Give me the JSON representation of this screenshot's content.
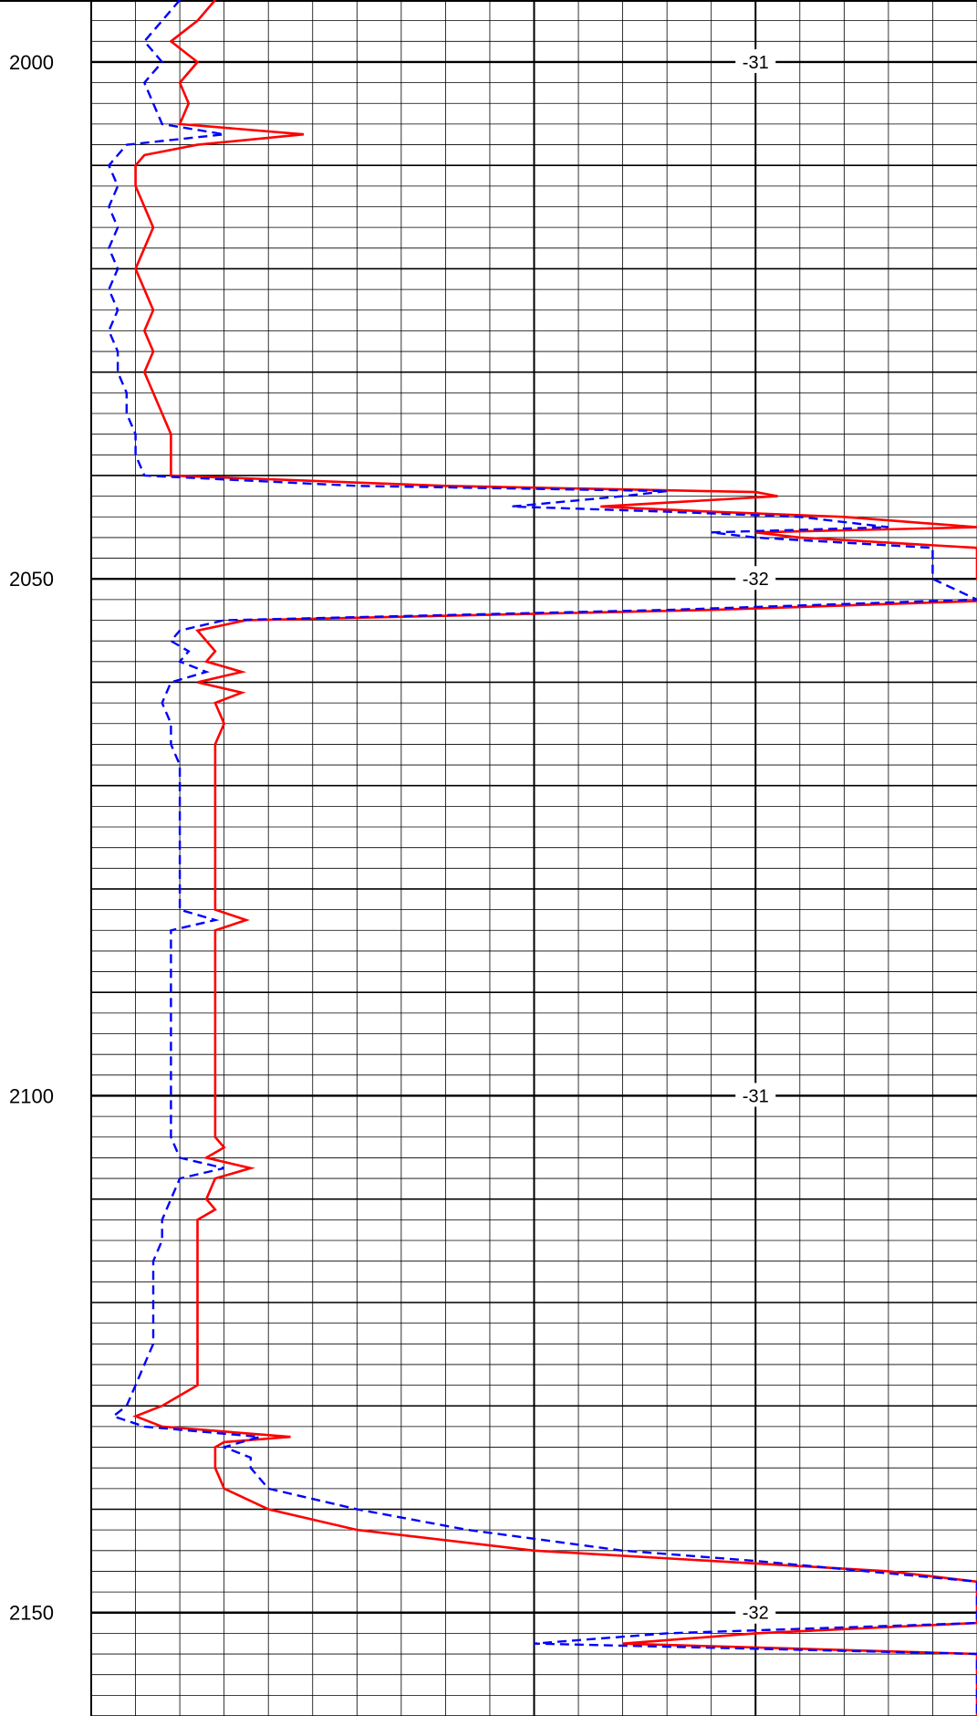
{
  "chart_data": {
    "type": "line",
    "depth_axis": {
      "min": 1994,
      "max": 2160,
      "major_step": 50,
      "grid_step": 2,
      "bold_step": 10,
      "labels": [
        "2000",
        "2050",
        "2100",
        "2150"
      ]
    },
    "track": {
      "xmin": 0,
      "xmax": 200,
      "vertical_lines": [
        0,
        10,
        20,
        30,
        40,
        50,
        60,
        70,
        80,
        90,
        100,
        110,
        120,
        130,
        140,
        150,
        160,
        170,
        180,
        190,
        200
      ],
      "bold_vertical": [
        0,
        100,
        150
      ]
    },
    "annotations": [
      {
        "depth": 2000,
        "text": "-31"
      },
      {
        "depth": 2050,
        "text": "-32"
      },
      {
        "depth": 2100,
        "text": "-31"
      },
      {
        "depth": 2150,
        "text": "-32"
      }
    ],
    "series": [
      {
        "style": "solid",
        "color": "#ff0000",
        "points": [
          [
            1994,
            28
          ],
          [
            1996,
            24
          ],
          [
            1998,
            18
          ],
          [
            2000,
            24
          ],
          [
            2002,
            20
          ],
          [
            2004,
            22
          ],
          [
            2006,
            20
          ],
          [
            2007,
            48
          ],
          [
            2008,
            24
          ],
          [
            2009,
            12
          ],
          [
            2010,
            10
          ],
          [
            2012,
            10
          ],
          [
            2014,
            12
          ],
          [
            2016,
            14
          ],
          [
            2018,
            12
          ],
          [
            2020,
            10
          ],
          [
            2022,
            12
          ],
          [
            2024,
            14
          ],
          [
            2026,
            12
          ],
          [
            2028,
            14
          ],
          [
            2030,
            12
          ],
          [
            2032,
            14
          ],
          [
            2034,
            16
          ],
          [
            2036,
            18
          ],
          [
            2038,
            18
          ],
          [
            2040,
            18
          ],
          [
            2041,
            80
          ],
          [
            2041.6,
            150
          ],
          [
            2042,
            155
          ],
          [
            2043,
            115
          ],
          [
            2043.5,
            140
          ],
          [
            2044,
            170
          ],
          [
            2045,
            200
          ],
          [
            2045.5,
            150
          ],
          [
            2046,
            160
          ],
          [
            2047,
            200
          ],
          [
            2050,
            200
          ],
          [
            2052,
            210
          ],
          [
            2053,
            140
          ],
          [
            2054,
            35
          ],
          [
            2055,
            24
          ],
          [
            2057,
            28
          ],
          [
            2058,
            26
          ],
          [
            2059,
            34
          ],
          [
            2060,
            24
          ],
          [
            2061,
            34
          ],
          [
            2062,
            28
          ],
          [
            2064,
            30
          ],
          [
            2066,
            28
          ],
          [
            2068,
            28
          ],
          [
            2070,
            28
          ],
          [
            2072,
            28
          ],
          [
            2074,
            28
          ],
          [
            2076,
            28
          ],
          [
            2078,
            28
          ],
          [
            2080,
            28
          ],
          [
            2082,
            28
          ],
          [
            2083,
            35
          ],
          [
            2084,
            28
          ],
          [
            2086,
            28
          ],
          [
            2088,
            28
          ],
          [
            2090,
            28
          ],
          [
            2092,
            28
          ],
          [
            2094,
            28
          ],
          [
            2096,
            28
          ],
          [
            2098,
            28
          ],
          [
            2100,
            28
          ],
          [
            2102,
            28
          ],
          [
            2104,
            28
          ],
          [
            2105,
            30
          ],
          [
            2106,
            26
          ],
          [
            2107,
            36
          ],
          [
            2108,
            28
          ],
          [
            2110,
            26
          ],
          [
            2111,
            28
          ],
          [
            2112,
            24
          ],
          [
            2114,
            24
          ],
          [
            2116,
            24
          ],
          [
            2118,
            24
          ],
          [
            2120,
            24
          ],
          [
            2122,
            24
          ],
          [
            2124,
            24
          ],
          [
            2126,
            24
          ],
          [
            2128,
            24
          ],
          [
            2130,
            16
          ],
          [
            2131,
            10
          ],
          [
            2132,
            16
          ],
          [
            2133,
            45
          ],
          [
            2133.5,
            30
          ],
          [
            2134,
            28
          ],
          [
            2135,
            28
          ],
          [
            2136,
            28
          ],
          [
            2138,
            30
          ],
          [
            2140,
            40
          ],
          [
            2142,
            60
          ],
          [
            2144,
            100
          ],
          [
            2145,
            140
          ],
          [
            2146,
            180
          ],
          [
            2147,
            200
          ],
          [
            2148,
            200
          ],
          [
            2148.5,
            200
          ],
          [
            2151,
            200
          ],
          [
            2152,
            150
          ],
          [
            2153,
            120
          ],
          [
            2154,
            200
          ],
          [
            2156,
            200
          ],
          [
            2158,
            200
          ],
          [
            2160,
            200
          ]
        ]
      },
      {
        "style": "dashed",
        "color": "#0000ff",
        "points": [
          [
            1994,
            20
          ],
          [
            1996,
            16
          ],
          [
            1998,
            12
          ],
          [
            2000,
            16
          ],
          [
            2002,
            12
          ],
          [
            2004,
            14
          ],
          [
            2006,
            16
          ],
          [
            2007,
            30
          ],
          [
            2008,
            8
          ],
          [
            2010,
            4
          ],
          [
            2012,
            6
          ],
          [
            2014,
            4
          ],
          [
            2016,
            6
          ],
          [
            2018,
            4
          ],
          [
            2020,
            6
          ],
          [
            2022,
            4
          ],
          [
            2024,
            6
          ],
          [
            2026,
            4
          ],
          [
            2028,
            6
          ],
          [
            2030,
            6
          ],
          [
            2032,
            8
          ],
          [
            2034,
            8
          ],
          [
            2036,
            10
          ],
          [
            2038,
            10
          ],
          [
            2040,
            12
          ],
          [
            2041,
            60
          ],
          [
            2041.5,
            130
          ],
          [
            2042,
            120
          ],
          [
            2043,
            95
          ],
          [
            2043.5,
            130
          ],
          [
            2044,
            160
          ],
          [
            2045,
            180
          ],
          [
            2045.5,
            140
          ],
          [
            2046,
            150
          ],
          [
            2047,
            190
          ],
          [
            2050,
            190
          ],
          [
            2052,
            200
          ],
          [
            2053,
            130
          ],
          [
            2054,
            30
          ],
          [
            2055,
            20
          ],
          [
            2056,
            18
          ],
          [
            2057,
            22
          ],
          [
            2058,
            20
          ],
          [
            2059,
            26
          ],
          [
            2060,
            18
          ],
          [
            2062,
            16
          ],
          [
            2064,
            18
          ],
          [
            2066,
            18
          ],
          [
            2068,
            20
          ],
          [
            2070,
            20
          ],
          [
            2072,
            20
          ],
          [
            2074,
            20
          ],
          [
            2076,
            20
          ],
          [
            2078,
            20
          ],
          [
            2080,
            20
          ],
          [
            2082,
            20
          ],
          [
            2083,
            28
          ],
          [
            2084,
            18
          ],
          [
            2086,
            18
          ],
          [
            2088,
            18
          ],
          [
            2090,
            18
          ],
          [
            2092,
            18
          ],
          [
            2094,
            18
          ],
          [
            2096,
            18
          ],
          [
            2098,
            18
          ],
          [
            2100,
            18
          ],
          [
            2102,
            18
          ],
          [
            2104,
            18
          ],
          [
            2106,
            20
          ],
          [
            2107,
            30
          ],
          [
            2108,
            20
          ],
          [
            2110,
            18
          ],
          [
            2112,
            16
          ],
          [
            2114,
            16
          ],
          [
            2116,
            14
          ],
          [
            2118,
            14
          ],
          [
            2120,
            14
          ],
          [
            2122,
            14
          ],
          [
            2124,
            14
          ],
          [
            2126,
            12
          ],
          [
            2128,
            10
          ],
          [
            2130,
            8
          ],
          [
            2131,
            5
          ],
          [
            2132,
            12
          ],
          [
            2133,
            38
          ],
          [
            2134,
            30
          ],
          [
            2135,
            36
          ],
          [
            2136,
            36
          ],
          [
            2138,
            40
          ],
          [
            2140,
            60
          ],
          [
            2142,
            85
          ],
          [
            2144,
            120
          ],
          [
            2145,
            150
          ],
          [
            2146,
            175
          ],
          [
            2147,
            200
          ],
          [
            2148,
            200
          ],
          [
            2151,
            200
          ],
          [
            2152,
            130
          ],
          [
            2153,
            100
          ],
          [
            2154,
            200
          ],
          [
            2156,
            200
          ],
          [
            2158,
            200
          ],
          [
            2160,
            200
          ]
        ]
      }
    ]
  }
}
